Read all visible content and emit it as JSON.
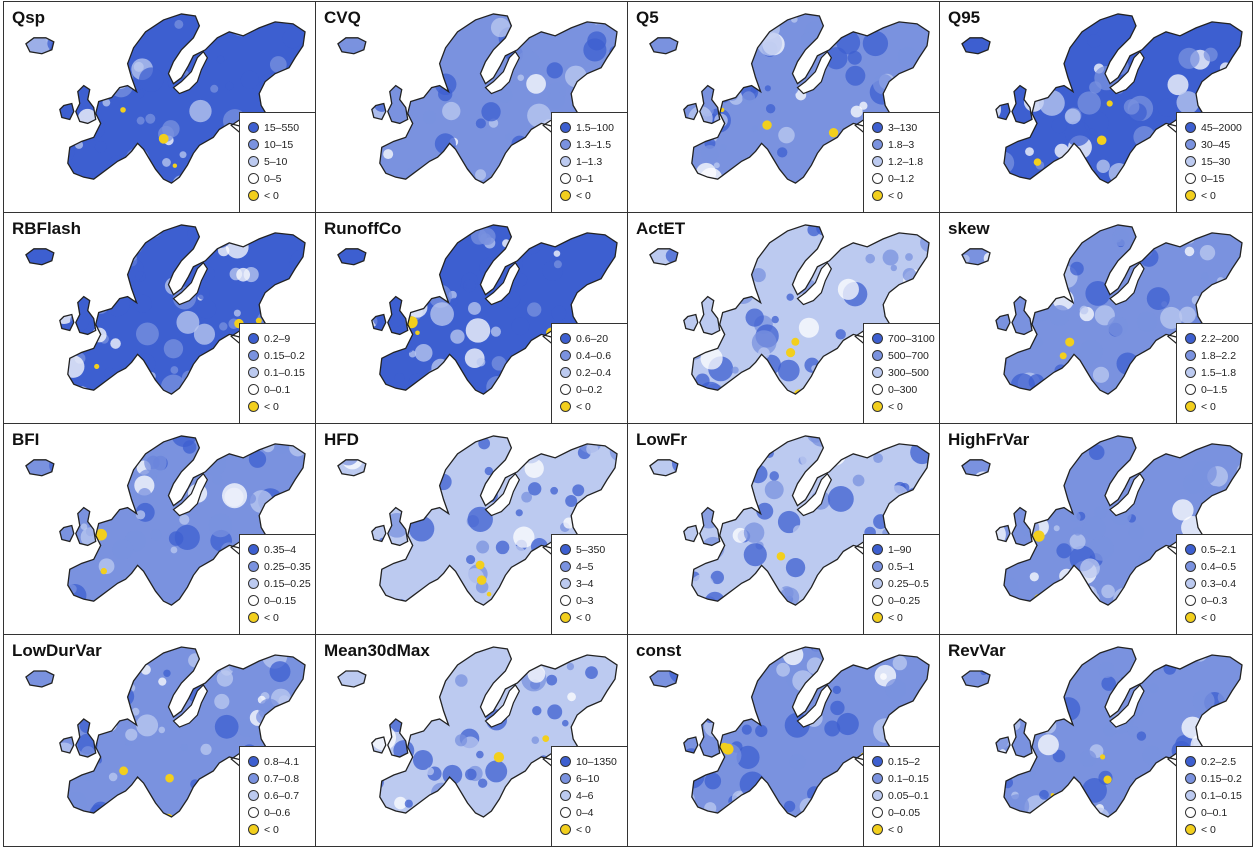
{
  "legend_colors": [
    "#3d5fd0",
    "#7a92df",
    "#bccaf0",
    "#ffffff",
    "#f2cf1d"
  ],
  "panels": [
    {
      "title": "Qsp",
      "legend": [
        "15–550",
        "10–15",
        "5–10",
        "0–5",
        "< 0"
      ]
    },
    {
      "title": "CVQ",
      "legend": [
        "1.5–100",
        "1.3–1.5",
        "1–1.3",
        "0–1",
        "< 0"
      ]
    },
    {
      "title": "Q5",
      "legend": [
        "3–130",
        "1.8–3",
        "1.2–1.8",
        "0–1.2",
        "< 0"
      ]
    },
    {
      "title": "Q95",
      "legend": [
        "45–2000",
        "30–45",
        "15–30",
        "0–15",
        "< 0"
      ]
    },
    {
      "title": "RBFlash",
      "legend": [
        "0.2–9",
        "0.15–0.2",
        "0.1–0.15",
        "0–0.1",
        "< 0"
      ]
    },
    {
      "title": "RunoffCo",
      "legend": [
        "0.6–20",
        "0.4–0.6",
        "0.2–0.4",
        "0–0.2",
        "< 0"
      ]
    },
    {
      "title": "ActET",
      "legend": [
        "700–3100",
        "500–700",
        "300–500",
        "0–300",
        "< 0"
      ]
    },
    {
      "title": "skew",
      "legend": [
        "2.2–200",
        "1.8–2.2",
        "1.5–1.8",
        "0–1.5",
        "< 0"
      ]
    },
    {
      "title": "BFI",
      "legend": [
        "0.35–4",
        "0.25–0.35",
        "0.15–0.25",
        "0–0.15",
        "< 0"
      ]
    },
    {
      "title": "HFD",
      "legend": [
        "5–350",
        "4–5",
        "3–4",
        "0–3",
        "< 0"
      ]
    },
    {
      "title": "LowFr",
      "legend": [
        "1–90",
        "0.5–1",
        "0.25–0.5",
        "0–0.25",
        "< 0"
      ]
    },
    {
      "title": "HighFrVar",
      "legend": [
        "0.5–2.1",
        "0.4–0.5",
        "0.3–0.4",
        "0–0.3",
        "< 0"
      ]
    },
    {
      "title": "LowDurVar",
      "legend": [
        "0.8–4.1",
        "0.7–0.8",
        "0.6–0.7",
        "0–0.6",
        "< 0"
      ]
    },
    {
      "title": "Mean30dMax",
      "legend": [
        "10–1350",
        "6–10",
        "4–6",
        "0–4",
        "< 0"
      ]
    },
    {
      "title": "const",
      "legend": [
        "0.15–2",
        "0.1–0.15",
        "0.05–0.1",
        "0–0.05",
        "< 0"
      ]
    },
    {
      "title": "RevVar",
      "legend": [
        "0.2–2.5",
        "0.15–0.2",
        "0.1–0.15",
        "0–0.1",
        "< 0"
      ]
    }
  ]
}
